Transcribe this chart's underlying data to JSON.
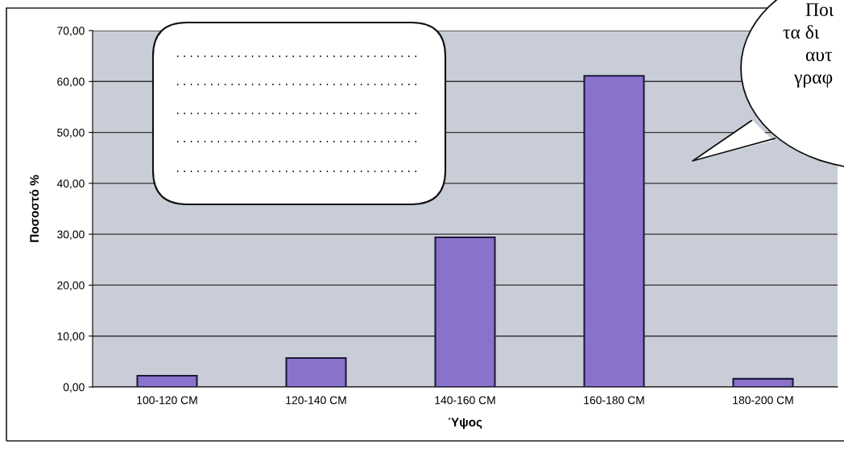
{
  "chart_data": {
    "type": "bar",
    "xlabel": "Ύψος",
    "ylabel": "Ποσοστό %",
    "categories": [
      "100-120 CM",
      "120-140 CM",
      "140-160 CM",
      "160-180 CM",
      "180-200 CM"
    ],
    "values": [
      2.2,
      5.7,
      29.4,
      61.1,
      1.6
    ],
    "color": "#8a72cc",
    "ylim": [
      0,
      70
    ],
    "yticks": [
      {
        "value": 0,
        "label": "0,00"
      },
      {
        "value": 10,
        "label": "10,00"
      },
      {
        "value": 20,
        "label": "20,00"
      },
      {
        "value": 30,
        "label": "30,00"
      },
      {
        "value": 40,
        "label": "40,00"
      },
      {
        "value": 50,
        "label": "50,00"
      },
      {
        "value": 60,
        "label": "60,00"
      },
      {
        "value": 70,
        "label": "70,00"
      }
    ],
    "grid": "y",
    "annotations": [
      "Ποι",
      "τα δι",
      "αυτ",
      "γραφ"
    ]
  }
}
